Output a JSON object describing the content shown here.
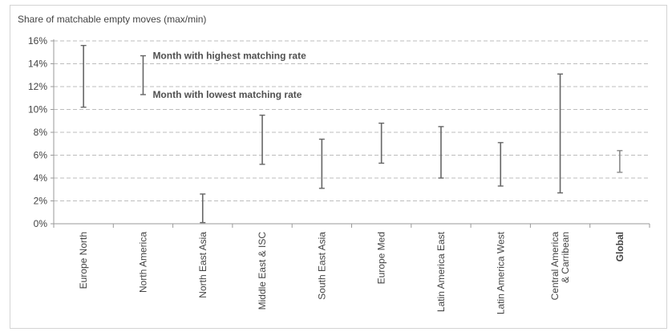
{
  "chart_data": {
    "type": "range",
    "title": "Share of matchable empty moves (max/min)",
    "ylim": [
      0,
      16
    ],
    "y_ticks": [
      0,
      2,
      4,
      6,
      8,
      10,
      12,
      14,
      16
    ],
    "y_tick_labels": [
      "0%",
      "2%",
      "4%",
      "6%",
      "8%",
      "10%",
      "12%",
      "14%",
      "16%"
    ],
    "grid": "horizontal dashed",
    "categories": [
      {
        "label": [
          "Europe North"
        ],
        "max": 15.6,
        "min": 10.2,
        "bold": false
      },
      {
        "label": [
          "North America"
        ],
        "max": 14.7,
        "min": 11.3,
        "bold": false
      },
      {
        "label": [
          "North East Asia"
        ],
        "max": 2.6,
        "min": 0.1,
        "bold": false
      },
      {
        "label": [
          "Middle East & ISC"
        ],
        "max": 9.5,
        "min": 5.2,
        "bold": false
      },
      {
        "label": [
          "South East Asia"
        ],
        "max": 7.4,
        "min": 3.1,
        "bold": false
      },
      {
        "label": [
          "Europe Med"
        ],
        "max": 8.8,
        "min": 5.3,
        "bold": false
      },
      {
        "label": [
          "Latin America East"
        ],
        "max": 8.5,
        "min": 4.0,
        "bold": false
      },
      {
        "label": [
          "Latin America West"
        ],
        "max": 7.1,
        "min": 3.3,
        "bold": false
      },
      {
        "label": [
          "Central America",
          "& Carribean"
        ],
        "max": 13.1,
        "min": 2.7,
        "bold": false
      },
      {
        "label": [
          "Global"
        ],
        "max": 6.4,
        "min": 4.5,
        "bold": true
      }
    ],
    "annotations": [
      {
        "text": "Month with highest matching rate",
        "value": 14.7,
        "anchor_category": 1
      },
      {
        "text": "Month with lowest matching rate",
        "value": 11.3,
        "anchor_category": 1
      }
    ],
    "colors": {
      "range_line": "#666666",
      "global_line": "#8a8a8a",
      "grid": "#bdbdbd",
      "axis": "#9a9a9a",
      "text": "#444444"
    }
  }
}
